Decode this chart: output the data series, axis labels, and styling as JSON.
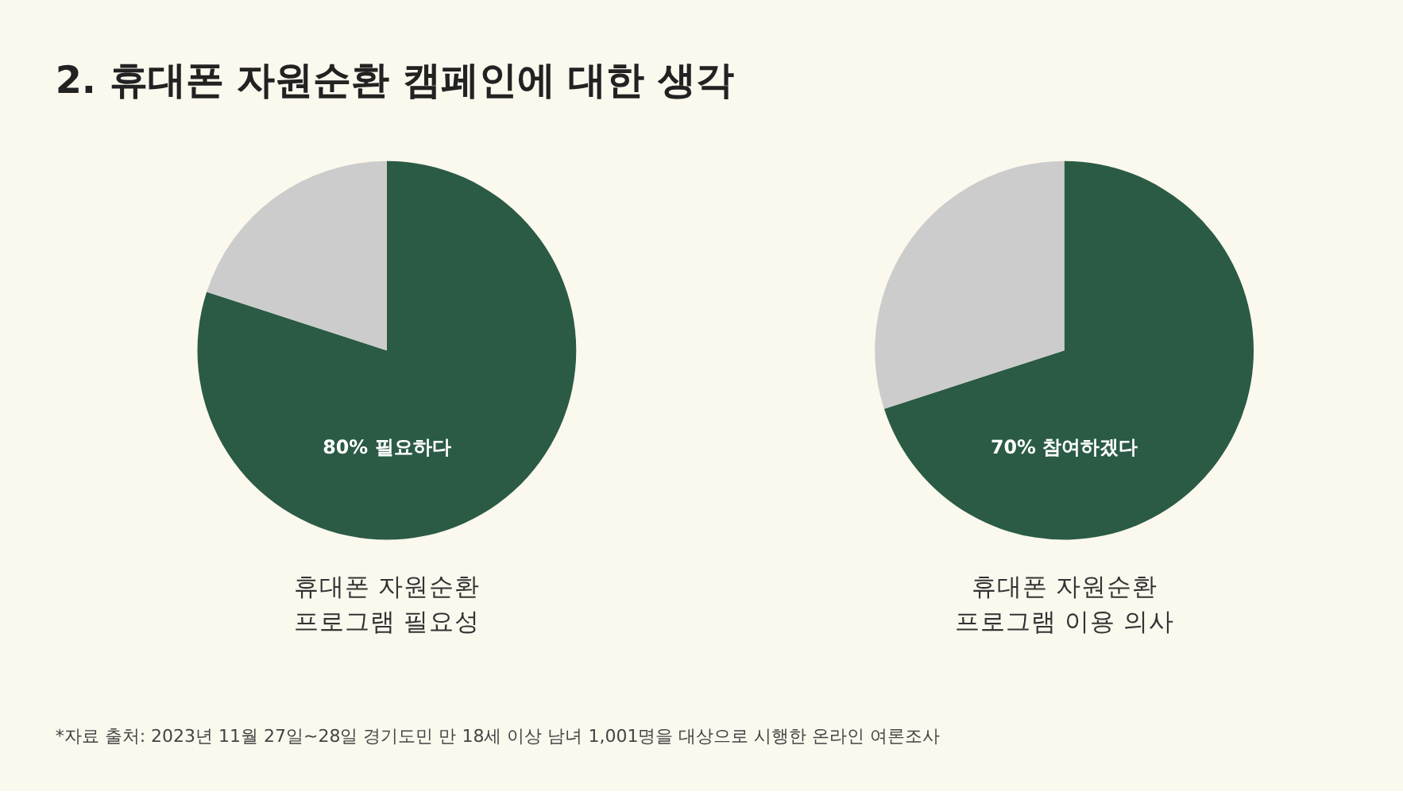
{
  "chart_data": [
    {
      "type": "pie",
      "title": "2. 휴대폰 자원순환 캠페인에 대한 생각",
      "xlabel": "휴대폰 자원순환\n프로그램 필요성",
      "categories": [
        null,
        null
      ],
      "values": [
        80,
        20
      ],
      "colors": [
        "#2b5b45",
        "#cccccc"
      ],
      "value_labels": [
        "80% 필요하다",
        null
      ],
      "legend": false,
      "annotations": [
        "*자료 출처: 2023년 11월 27일~28일 경기도민 만 18세 이상 남녀 1,001명을 대상으로 시행한 온라인 여론조사"
      ]
    },
    {
      "type": "pie",
      "xlabel": "휴대폰 자원순환\n프로그램 이용 의사",
      "categories": [
        null,
        null
      ],
      "values": [
        70,
        30
      ],
      "colors": [
        "#2b5b45",
        "#cccccc"
      ],
      "value_labels": [
        "70% 참여하겠다",
        null
      ],
      "legend": false
    }
  ]
}
